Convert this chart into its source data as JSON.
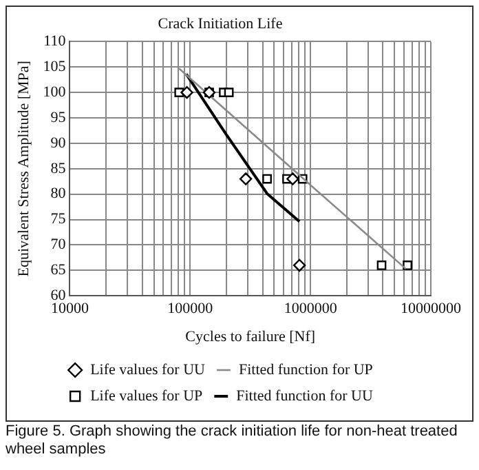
{
  "chart_data": {
    "type": "scatter",
    "title": "Crack Initiation Life",
    "xlabel": "Cycles to failure [Nf]",
    "ylabel": "Equivalent Stress Amplitude [MPa]",
    "log": "x",
    "grid": true,
    "legend": "bottom",
    "xlim": [
      10000,
      10000000
    ],
    "ylim": [
      60,
      110
    ],
    "xticks": [
      10000,
      {
        "value": 20000,
        "label": null
      },
      {
        "value": 30000,
        "label": null
      },
      {
        "value": 40000,
        "label": null
      },
      {
        "value": 50000,
        "label": null
      },
      {
        "value": 60000,
        "label": null
      },
      {
        "value": 70000,
        "label": null
      },
      {
        "value": 80000,
        "label": null
      },
      {
        "value": 90000,
        "label": null
      },
      100000,
      {
        "value": 200000,
        "label": null
      },
      {
        "value": 300000,
        "label": null
      },
      {
        "value": 400000,
        "label": null
      },
      {
        "value": 500000,
        "label": null
      },
      {
        "value": 600000,
        "label": null
      },
      {
        "value": 700000,
        "label": null
      },
      {
        "value": 800000,
        "label": null
      },
      {
        "value": 900000,
        "label": null
      },
      1000000,
      {
        "value": 2000000,
        "label": null
      },
      {
        "value": 3000000,
        "label": null
      },
      {
        "value": 4000000,
        "label": null
      },
      {
        "value": 5000000,
        "label": null
      },
      {
        "value": 6000000,
        "label": null
      },
      {
        "value": 7000000,
        "label": null
      },
      {
        "value": 8000000,
        "label": null
      },
      {
        "value": 9000000,
        "label": null
      },
      10000000
    ],
    "yticks": [
      60,
      65,
      70,
      75,
      80,
      85,
      90,
      95,
      100,
      105,
      110
    ],
    "series": [
      {
        "name": "Life values for UU",
        "marker": "diamond",
        "color": "#000000",
        "x": [
          94000,
          144000,
          290000,
          712000,
          810000
        ],
        "values": [
          100,
          100,
          83,
          83,
          66
        ]
      },
      {
        "name": "Fitted function for UP",
        "type": "line",
        "marker": "none",
        "color": "#8a8a8a",
        "x": [
          81000,
          1000000,
          6200000
        ],
        "values": [
          104.7,
          81.8,
          65.3
        ]
      },
      {
        "name": "Life values for UP",
        "marker": "square",
        "color": "#000000",
        "x": [
          81000,
          144000,
          190000,
          210000,
          436000,
          638000,
          860000,
          3900000,
          6400000
        ],
        "values": [
          100,
          100,
          100,
          100,
          83,
          83,
          83,
          66,
          66
        ]
      },
      {
        "name": "Fitted function for UU",
        "type": "line",
        "marker": "none",
        "color": "#000000",
        "x": [
          93000,
          200000,
          436000,
          810000
        ],
        "values": [
          103.6,
          91.7,
          80.1,
          74.6
        ]
      }
    ],
    "annotations": [
      "Figure 5. Graph showing the crack initiation life for non-heat treated wheel  samples"
    ]
  }
}
